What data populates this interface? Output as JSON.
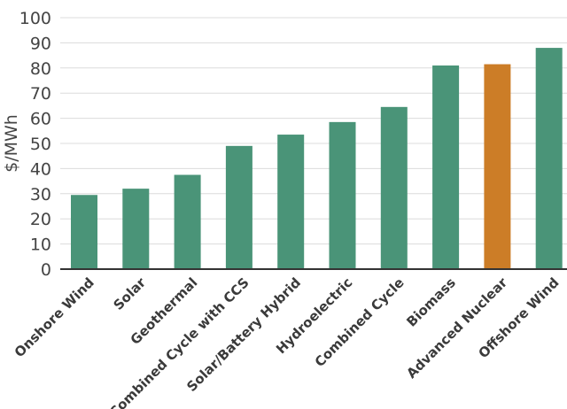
{
  "chart_data": {
    "type": "bar",
    "title": "",
    "xlabel": "",
    "ylabel": "$/MWh",
    "ylim": [
      0,
      100
    ],
    "yticks": [
      0,
      10,
      20,
      30,
      40,
      50,
      60,
      70,
      80,
      90,
      100
    ],
    "grid": true,
    "categories": [
      "Onshore Wind",
      "Solar",
      "Geothermal",
      "Combined Cycle with CCS",
      "Solar/Battery Hybrid",
      "Hydroelectric",
      "Combined Cycle",
      "Biomass",
      "Advanced Nuclear",
      "Offshore Wind"
    ],
    "values": [
      29.5,
      32,
      37.5,
      49,
      53.5,
      58.5,
      64.5,
      81,
      81.5,
      88
    ],
    "colors": {
      "default": "#4a9478",
      "highlight": "#cc7d27",
      "highlight_category": "Advanced Nuclear"
    }
  }
}
